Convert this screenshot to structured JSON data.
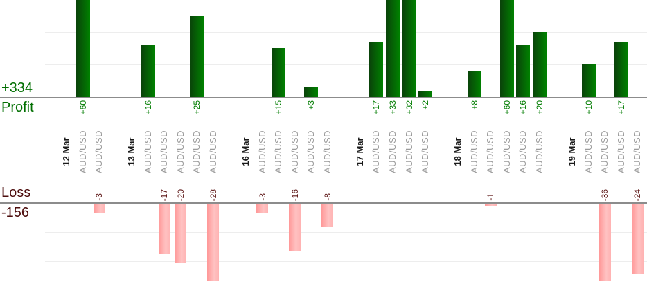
{
  "chart_data": {
    "type": "bar",
    "description": "Per-trade profit and loss bar chart grouped by date; profits plotted upward above a Profit axis, losses plotted downward below a Loss axis",
    "profit_total_label": "+334",
    "profit_axis_label": "Profit",
    "loss_axis_label": "Loss",
    "loss_total_label": "-156",
    "grid": true,
    "profit_gridline_values": [
      10,
      20
    ],
    "loss_gridline_values": [
      -10,
      -20
    ],
    "profit_visible_range": [
      0,
      30
    ],
    "loss_visible_range": [
      -27,
      0
    ],
    "groups": [
      {
        "date": "12 Mar",
        "trades": [
          {
            "symbol": "AUD/USD",
            "value": 60
          },
          {
            "symbol": "AUD/USD",
            "value": -3
          }
        ]
      },
      {
        "date": "13 Mar",
        "trades": [
          {
            "symbol": "AUD/USD",
            "value": 16
          },
          {
            "symbol": "AUD/USD",
            "value": -17
          },
          {
            "symbol": "AUD/USD",
            "value": -20
          },
          {
            "symbol": "AUD/USD",
            "value": 25
          },
          {
            "symbol": "AUD/USD",
            "value": -28
          }
        ]
      },
      {
        "date": "16 Mar",
        "trades": [
          {
            "symbol": "AUD/USD",
            "value": -3
          },
          {
            "symbol": "AUD/USD",
            "value": 15
          },
          {
            "symbol": "AUD/USD",
            "value": -16
          },
          {
            "symbol": "AUD/USD",
            "value": 3
          },
          {
            "symbol": "AUD/USD",
            "value": -8
          }
        ]
      },
      {
        "date": "17 Mar",
        "trades": [
          {
            "symbol": "AUD/USD",
            "value": 17
          },
          {
            "symbol": "AUD/USD",
            "value": 33
          },
          {
            "symbol": "AUD/USD",
            "value": 32
          },
          {
            "symbol": "AUD/USD",
            "value": 2
          }
        ]
      },
      {
        "date": "18 Mar",
        "trades": [
          {
            "symbol": "AUD/USD",
            "value": 8
          },
          {
            "symbol": "AUD/USD",
            "value": -1
          },
          {
            "symbol": "AUD/USD",
            "value": 60
          },
          {
            "symbol": "AUD/USD",
            "value": 16
          },
          {
            "symbol": "AUD/USD",
            "value": 20
          }
        ]
      },
      {
        "date": "19 Mar",
        "trades": [
          {
            "symbol": "AUD/USD",
            "value": 10
          },
          {
            "symbol": "AUD/USD",
            "value": -36
          },
          {
            "symbol": "AUD/USD",
            "value": 17
          },
          {
            "symbol": "AUD/USD",
            "value": -24
          }
        ]
      }
    ],
    "colors": {
      "profit_bar_dark": "#0a420a",
      "profit_bar_light": "#008200",
      "loss_bar_dark": "#ff9898",
      "loss_bar_light": "#ffc2c2",
      "profit_text": "#006e00",
      "profit_value_text": "#007c00",
      "loss_text": "#4d0d0d",
      "loss_value_text": "#5c1414",
      "date_text": "#1a1a1a",
      "symbol_text": "#9b9b9b",
      "axis_line": "#8c8c8c",
      "gridline": "#ededed"
    }
  }
}
